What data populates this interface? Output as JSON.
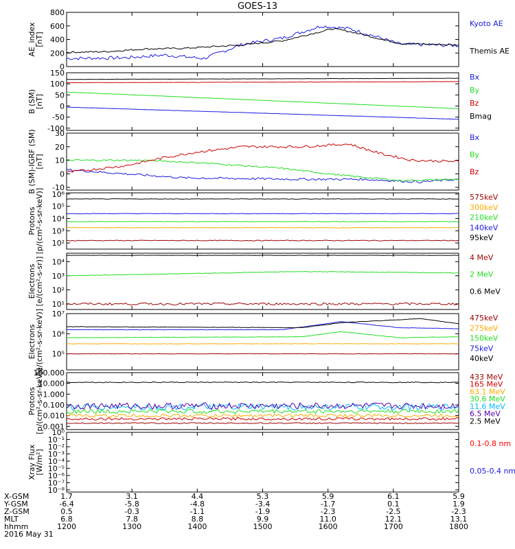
{
  "title": "GOES-13",
  "colors": {
    "black": "#000000",
    "blue": "#1a1adf",
    "red": "#cc0000",
    "green": "#22dd22",
    "orange": "#ffaa00",
    "darkred": "#990000",
    "cyan": "#00bbff",
    "purple": "#5500aa",
    "bright_red": "#ff0000"
  },
  "chart_data": [
    {
      "type": "line",
      "ylabel": [
        "AE_index",
        "[nT]"
      ],
      "yticks": [
        "800",
        "600",
        "400",
        "200",
        "0"
      ],
      "ylim": [
        0,
        800
      ],
      "log": false,
      "series": [
        {
          "name": "Kyoto AE",
          "color": "blue"
        },
        {
          "name": "Themis AE",
          "color": "black"
        }
      ]
    },
    {
      "type": "line",
      "ylabel": [
        "B (SM)",
        "[nT]"
      ],
      "yticks": [
        "150",
        "100",
        "50",
        "0",
        "-50",
        "-100"
      ],
      "ylim": [
        -110,
        150
      ],
      "log": false,
      "series": [
        {
          "name": "Bx",
          "color": "blue"
        },
        {
          "name": "By",
          "color": "green"
        },
        {
          "name": "Bz",
          "color": "red"
        },
        {
          "name": "Bmag",
          "color": "black"
        }
      ]
    },
    {
      "type": "line",
      "ylabel": [
        "B (SM)-IGRF (SM)",
        "[nT]"
      ],
      "yticks": [
        "30",
        "20",
        "10",
        "0",
        "-10"
      ],
      "ylim": [
        -12,
        30
      ],
      "log": false,
      "series": [
        {
          "name": "Bx",
          "color": "blue"
        },
        {
          "name": "By",
          "color": "green"
        },
        {
          "name": "Bz",
          "color": "red"
        }
      ]
    },
    {
      "type": "line",
      "ylabel": [
        "Protons",
        "[p/(cm²-s-sr-keV)]"
      ],
      "yticks": [
        "10⁶",
        "10⁵",
        "10⁴",
        "10³",
        "10²"
      ],
      "ylim": [
        1.5,
        6.1
      ],
      "log": true,
      "series": [
        {
          "name": "575keV",
          "color": "darkred"
        },
        {
          "name": "300keV",
          "color": "orange"
        },
        {
          "name": "210keV",
          "color": "green"
        },
        {
          "name": "140keV",
          "color": "blue"
        },
        {
          "name": "95keV",
          "color": "black"
        }
      ]
    },
    {
      "type": "line",
      "ylabel": [
        "Electrons",
        "[e/(cm²-s-sr)]"
      ],
      "yticks": [
        "10⁴",
        "10³",
        "10²",
        "10¹"
      ],
      "ylim": [
        0.6,
        4.6
      ],
      "log": true,
      "series": [
        {
          "name": "4 MeV",
          "color": "darkred"
        },
        {
          "name": "2 MeV",
          "color": "green"
        },
        {
          "name": "0.6 MeV",
          "color": "black"
        }
      ]
    },
    {
      "type": "line",
      "ylabel": [
        "Electrons",
        "[e/(cm²-s-sr-keV)]"
      ],
      "yticks": [
        "10⁷",
        "10⁶",
        "10⁵"
      ],
      "ylim": [
        4.2,
        7.0
      ],
      "log": true,
      "series": [
        {
          "name": "475keV",
          "color": "darkred"
        },
        {
          "name": "275keV",
          "color": "orange"
        },
        {
          "name": "150keV",
          "color": "green"
        },
        {
          "name": "75keV",
          "color": "blue"
        },
        {
          "name": "40keV",
          "color": "black"
        }
      ]
    },
    {
      "type": "line",
      "ylabel": [
        "Protons",
        "[p/(cm²-s-sr-keV)]"
      ],
      "yticks": [
        "100.000",
        "10.000",
        "1.000",
        "0.100",
        "0.010",
        "0.001"
      ],
      "ylim": [
        -3.3,
        2.0
      ],
      "log": true,
      "series": [
        {
          "name": "433 MeV",
          "color": "darkred"
        },
        {
          "name": "165 MeV",
          "color": "red"
        },
        {
          "name": "63.1 MeV",
          "color": "orange"
        },
        {
          "name": "30.6 MeV",
          "color": "green"
        },
        {
          "name": "11.6 MeV",
          "color": "cyan"
        },
        {
          "name": "6.5 MeV",
          "color": "purple"
        },
        {
          "name": "2.5 MeV",
          "color": "black"
        }
      ]
    },
    {
      "type": "line",
      "ylabel": [
        "Xray Flux",
        "[W/m²]"
      ],
      "yticks": [
        "10⁰",
        "10⁻¹",
        "10⁻²",
        "10⁻³",
        "10⁻⁴",
        "10⁻⁵",
        "10⁻⁶",
        "10⁻⁷",
        "10⁻⁸"
      ],
      "ylim": [
        -8.3,
        0
      ],
      "log": true,
      "series": [
        {
          "name": "0.1-0.8 nm",
          "color": "bright_red"
        },
        {
          "name": "0.05-0.4 nm",
          "color": "blue"
        }
      ]
    }
  ],
  "x_axis": {
    "rows": [
      {
        "label": "X-GSM",
        "values": [
          "1.7",
          "3.1",
          "4.4",
          "5.3",
          "5.9",
          "6.1",
          "5.9"
        ]
      },
      {
        "label": "Y-GSM",
        "values": [
          "-6.4",
          "-5.8",
          "-4.8",
          "-3.4",
          "-1.7",
          "0.1",
          "1.9"
        ]
      },
      {
        "label": "Z-GSM",
        "values": [
          "0.5",
          "-0.3",
          "-1.1",
          "-1.9",
          "-2.3",
          "-2.5",
          "-2.3"
        ]
      },
      {
        "label": "MLT",
        "values": [
          "6.8",
          "7.8",
          "8.8",
          "9.9",
          "11.0",
          "12.1",
          "13.1"
        ]
      },
      {
        "label": "hhmm",
        "values": [
          "1200",
          "1300",
          "1400",
          "1500",
          "1600",
          "1700",
          "1800"
        ]
      }
    ],
    "date": "2016 May 31"
  }
}
